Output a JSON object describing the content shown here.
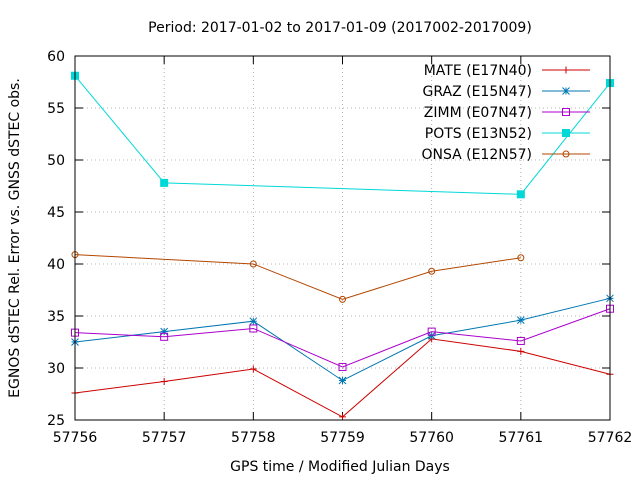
{
  "chart_data": {
    "type": "line",
    "title": "Period: 2017-01-02 to 2017-01-09 (2017002-2017009)",
    "xlabel": "GPS time / Modified Julian Days",
    "ylabel": "EGNOS dSTEC Rel. Error vs. GNSS dSTEC obs.",
    "xlim": [
      57756,
      57762
    ],
    "ylim": [
      25,
      60
    ],
    "xticks": [
      57756,
      57757,
      57758,
      57759,
      57760,
      57761,
      57762
    ],
    "yticks": [
      25,
      30,
      35,
      40,
      45,
      50,
      55,
      60
    ],
    "grid": true,
    "legend_position": "top-right",
    "series": [
      {
        "name": "MATE (E17N40)",
        "color": "#cc0000",
        "marker": "plus",
        "x": [
          57756,
          57757,
          57758,
          57759,
          57760,
          57761,
          57762
        ],
        "values": [
          27.6,
          28.7,
          29.9,
          25.3,
          32.8,
          31.6,
          29.4
        ]
      },
      {
        "name": "GRAZ (E15N47)",
        "color": "#0077b3",
        "marker": "star",
        "x": [
          57756,
          57757,
          57758,
          57759,
          57760,
          57761,
          57762
        ],
        "values": [
          32.5,
          33.5,
          34.5,
          28.8,
          33.1,
          34.6,
          36.7
        ]
      },
      {
        "name": "ZIMM (E07N47)",
        "color": "#aa00cc",
        "marker": "square-open",
        "x": [
          57756,
          57757,
          57758,
          57759,
          57760,
          57761,
          57762
        ],
        "values": [
          33.4,
          33.0,
          33.8,
          30.1,
          33.5,
          32.6,
          35.7
        ]
      },
      {
        "name": "POTS (E13N52)",
        "color": "#00d8d8",
        "marker": "square-filled",
        "x": [
          57756,
          57757,
          57761,
          57762
        ],
        "values": [
          58.1,
          47.8,
          46.7,
          57.4
        ]
      },
      {
        "name": "ONSA (E12N57)",
        "color": "#b34700",
        "marker": "circle-open",
        "x": [
          57756,
          57758,
          57759,
          57760,
          57761
        ],
        "values": [
          40.9,
          40.0,
          36.6,
          39.3,
          40.6
        ]
      }
    ]
  }
}
